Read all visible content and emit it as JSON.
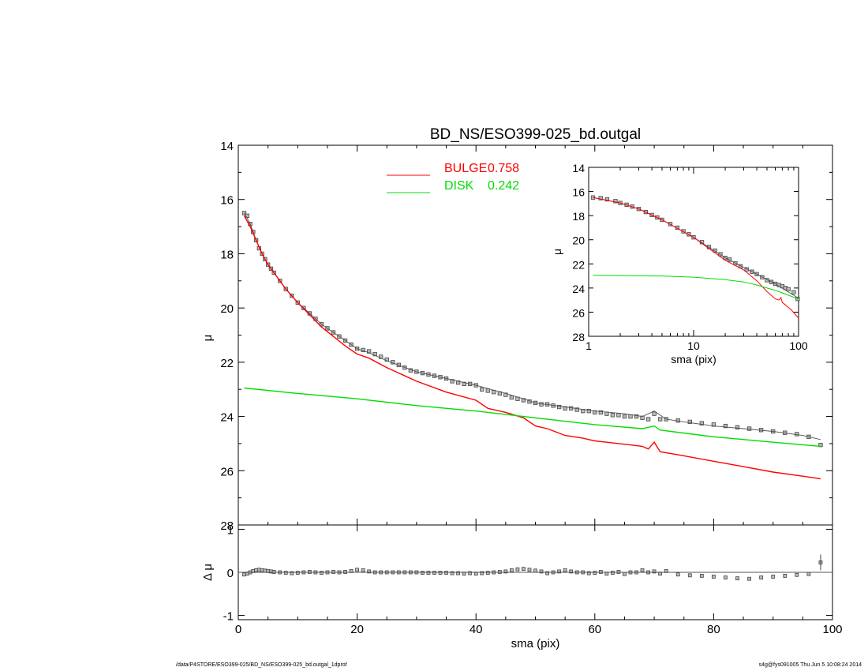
{
  "footer": {
    "left": "/data/P4STORE/ESO399-025/BD_NS/ESO399-025_bd.outgal_1dprof",
    "right": "s4g@fys091005  Thu Jun  5 10:08:24 2014"
  },
  "chart_data": [
    {
      "id": "main",
      "type": "scatter",
      "title": "BD_NS/ESO399-025_bd.outgal",
      "xlabel": "",
      "ylabel": "μ",
      "xlim": [
        0,
        100
      ],
      "ylim": [
        28,
        14
      ],
      "yticks": [
        14,
        16,
        18,
        20,
        22,
        24,
        26,
        28
      ],
      "legend": [
        {
          "label": "BULGE",
          "value": "0.758",
          "color": "#ff0000"
        },
        {
          "label": "DISK",
          "value": "0.242",
          "color": "#00dd00"
        }
      ],
      "series": [
        {
          "kind": "data",
          "color": "#444444",
          "x": [
            1,
            1.5,
            2,
            2.5,
            3,
            3.5,
            4,
            4.5,
            5,
            5.5,
            6,
            7,
            8,
            9,
            10,
            11,
            12,
            13,
            14,
            15,
            16,
            17,
            18,
            19,
            20,
            21,
            22,
            23,
            24,
            25,
            26,
            27,
            28,
            29,
            30,
            31,
            32,
            33,
            34,
            35,
            36,
            37,
            38,
            39,
            40,
            41,
            42,
            43,
            44,
            45,
            46,
            47,
            48,
            49,
            50,
            51,
            52,
            53,
            54,
            55,
            56,
            57,
            58,
            59,
            60,
            61,
            62,
            63,
            64,
            65,
            66,
            67,
            68,
            69,
            70,
            71,
            72,
            74,
            76,
            78,
            80,
            82,
            84,
            86,
            88,
            90,
            92,
            94,
            96,
            98
          ],
          "y": [
            16.5,
            16.6,
            16.9,
            17.2,
            17.5,
            17.8,
            18.0,
            18.2,
            18.4,
            18.55,
            18.7,
            19.0,
            19.3,
            19.55,
            19.8,
            20.0,
            20.2,
            20.4,
            20.6,
            20.75,
            20.9,
            21.05,
            21.2,
            21.35,
            21.5,
            21.55,
            21.6,
            21.7,
            21.8,
            21.9,
            22.0,
            22.1,
            22.2,
            22.3,
            22.35,
            22.4,
            22.45,
            22.5,
            22.55,
            22.6,
            22.7,
            22.75,
            22.8,
            22.8,
            22.85,
            23.0,
            23.05,
            23.1,
            23.15,
            23.2,
            23.3,
            23.35,
            23.4,
            23.45,
            23.5,
            23.55,
            23.55,
            23.6,
            23.65,
            23.7,
            23.7,
            23.75,
            23.8,
            23.8,
            23.85,
            23.85,
            23.9,
            23.95,
            23.95,
            24.0,
            24.0,
            24.0,
            24.05,
            24.1,
            23.9,
            24.1,
            24.1,
            24.15,
            24.2,
            24.25,
            24.3,
            24.35,
            24.4,
            24.45,
            24.5,
            24.55,
            24.6,
            24.65,
            24.75,
            25.05
          ]
        },
        {
          "kind": "model",
          "color": "#555555",
          "x": [
            1,
            2,
            3,
            4,
            5,
            6,
            7,
            8,
            10,
            12,
            14,
            16,
            18,
            20,
            22,
            25,
            30,
            35,
            40,
            45,
            48,
            50,
            55,
            60,
            65,
            68,
            70,
            72,
            75,
            80,
            85,
            90,
            95,
            98
          ],
          "y": [
            16.5,
            16.9,
            17.5,
            18.0,
            18.4,
            18.7,
            19.0,
            19.3,
            19.8,
            20.2,
            20.6,
            20.9,
            21.2,
            21.5,
            21.65,
            21.95,
            22.35,
            22.6,
            22.85,
            23.15,
            23.35,
            23.5,
            23.65,
            23.8,
            23.9,
            24.0,
            23.8,
            24.1,
            24.2,
            24.35,
            24.45,
            24.55,
            24.7,
            24.85
          ]
        },
        {
          "kind": "bulge",
          "color": "#ff0000",
          "x": [
            1,
            2,
            3,
            4,
            5,
            6,
            7,
            8,
            10,
            12,
            14,
            16,
            18,
            20,
            22,
            25,
            30,
            35,
            40,
            42,
            45,
            48,
            50,
            52,
            55,
            58,
            60,
            62,
            64,
            66,
            68,
            69,
            70,
            71,
            75,
            80,
            85,
            90,
            95,
            98
          ],
          "y": [
            16.6,
            17.0,
            17.5,
            18.0,
            18.4,
            18.7,
            19.0,
            19.3,
            19.8,
            20.25,
            20.7,
            21.05,
            21.4,
            21.7,
            21.85,
            22.2,
            22.7,
            23.1,
            23.4,
            23.7,
            23.85,
            24.05,
            24.35,
            24.45,
            24.7,
            24.8,
            24.9,
            24.95,
            25.0,
            25.05,
            25.1,
            25.2,
            24.95,
            25.3,
            25.45,
            25.65,
            25.85,
            26.05,
            26.2,
            26.3
          ]
        },
        {
          "kind": "disk",
          "color": "#00dd00",
          "x": [
            1,
            10,
            20,
            30,
            40,
            48,
            50,
            60,
            68,
            70,
            71,
            80,
            90,
            98
          ],
          "y": [
            22.95,
            23.15,
            23.35,
            23.6,
            23.8,
            24.0,
            24.05,
            24.3,
            24.45,
            24.35,
            24.5,
            24.75,
            24.95,
            25.1
          ]
        }
      ]
    },
    {
      "id": "residual",
      "type": "scatter",
      "title": "",
      "xlabel": "sma (pix)",
      "ylabel": "Δ μ",
      "xlim": [
        0,
        100
      ],
      "ylim": [
        -1.1,
        1.1
      ],
      "xticks": [
        0,
        20,
        40,
        60,
        80,
        100
      ],
      "yticks": [
        1,
        0,
        -1
      ],
      "series": [
        {
          "kind": "residual",
          "color": "#444444",
          "x": [
            1,
            1.5,
            2,
            2.5,
            3,
            3.5,
            4,
            4.5,
            5,
            5.5,
            6,
            7,
            8,
            9,
            10,
            11,
            12,
            13,
            14,
            15,
            16,
            17,
            18,
            19,
            20,
            21,
            22,
            23,
            24,
            25,
            26,
            27,
            28,
            29,
            30,
            31,
            32,
            33,
            34,
            35,
            36,
            37,
            38,
            39,
            40,
            41,
            42,
            43,
            44,
            45,
            46,
            47,
            48,
            49,
            50,
            51,
            52,
            53,
            54,
            55,
            56,
            57,
            58,
            59,
            60,
            61,
            62,
            63,
            64,
            65,
            66,
            67,
            68,
            69,
            70,
            71,
            72,
            74,
            76,
            78,
            80,
            82,
            84,
            86,
            88,
            90,
            92,
            94,
            96,
            98
          ],
          "y": [
            -0.05,
            -0.03,
            0.0,
            0.03,
            0.05,
            0.06,
            0.05,
            0.04,
            0.03,
            0.02,
            0.01,
            0.0,
            -0.01,
            -0.02,
            -0.01,
            0.0,
            0.01,
            0.0,
            -0.01,
            0.0,
            0.01,
            0.0,
            0.01,
            0.03,
            0.06,
            0.05,
            0.02,
            0.0,
            0.0,
            0.0,
            0.0,
            0.0,
            0.0,
            0.0,
            0.0,
            -0.01,
            -0.01,
            -0.01,
            -0.01,
            -0.01,
            -0.02,
            -0.02,
            -0.03,
            -0.02,
            -0.03,
            -0.02,
            -0.01,
            0.0,
            0.01,
            0.02,
            0.05,
            0.07,
            0.08,
            0.06,
            0.04,
            0.02,
            -0.02,
            0.0,
            0.02,
            0.05,
            0.02,
            0.0,
            0.0,
            -0.02,
            -0.01,
            0.01,
            -0.03,
            -0.01,
            0.01,
            -0.04,
            0.0,
            0.0,
            0.05,
            0.0,
            0.02,
            -0.03,
            0.03,
            -0.05,
            -0.07,
            -0.08,
            -0.1,
            -0.12,
            -0.14,
            -0.15,
            -0.12,
            -0.1,
            -0.08,
            -0.06,
            -0.04,
            0.23
          ]
        },
        {
          "kind": "zero",
          "color": "#555555",
          "x": [
            0,
            100
          ],
          "y": [
            0,
            0
          ]
        }
      ]
    },
    {
      "id": "inset",
      "type": "scatter",
      "title": "",
      "xlabel": "sma (pix)",
      "ylabel": "μ",
      "xscale": "log",
      "xlim": [
        1,
        100
      ],
      "ylim": [
        28,
        14
      ],
      "xticks": [
        1,
        10,
        100
      ],
      "yticks": [
        14,
        16,
        18,
        20,
        22,
        24,
        26,
        28
      ],
      "series": [
        {
          "kind": "data",
          "color": "#444444",
          "x": [
            1.1,
            1.3,
            1.5,
            1.8,
            2,
            2.3,
            2.6,
            3,
            3.5,
            4,
            4.5,
            5,
            6,
            7,
            8,
            9,
            10,
            12,
            14,
            16,
            18,
            20,
            22,
            25,
            28,
            32,
            36,
            40,
            45,
            50,
            55,
            60,
            65,
            70,
            75,
            80,
            90,
            98
          ],
          "y": [
            16.5,
            16.55,
            16.65,
            16.8,
            16.95,
            17.1,
            17.25,
            17.45,
            17.7,
            17.95,
            18.15,
            18.35,
            18.7,
            19.0,
            19.3,
            19.55,
            19.8,
            20.2,
            20.6,
            20.9,
            21.2,
            21.5,
            21.65,
            21.95,
            22.2,
            22.45,
            22.65,
            22.85,
            23.1,
            23.35,
            23.5,
            23.65,
            23.75,
            23.85,
            24.0,
            24.1,
            24.35,
            24.9
          ]
        },
        {
          "kind": "model",
          "color": "#555555",
          "x": [
            1.1,
            2,
            3,
            5,
            10,
            20,
            40,
            60,
            100
          ],
          "y": [
            16.5,
            16.95,
            17.45,
            18.35,
            19.8,
            21.5,
            22.85,
            23.65,
            24.85
          ]
        },
        {
          "kind": "bulge",
          "color": "#ff0000",
          "x": [
            1.1,
            2,
            3,
            5,
            10,
            20,
            30,
            40,
            50,
            60,
            65,
            68,
            70,
            75,
            85,
            100
          ],
          "y": [
            16.5,
            16.95,
            17.45,
            18.35,
            19.8,
            21.7,
            22.5,
            23.4,
            24.3,
            24.9,
            25.0,
            24.8,
            25.2,
            25.4,
            25.8,
            26.5
          ]
        },
        {
          "kind": "disk",
          "color": "#00dd00",
          "x": [
            1.1,
            5,
            10,
            20,
            30,
            40,
            50,
            60,
            70,
            80,
            100
          ],
          "y": [
            22.95,
            23.0,
            23.1,
            23.3,
            23.5,
            23.75,
            24.0,
            24.2,
            24.4,
            24.6,
            24.9
          ]
        }
      ]
    }
  ]
}
